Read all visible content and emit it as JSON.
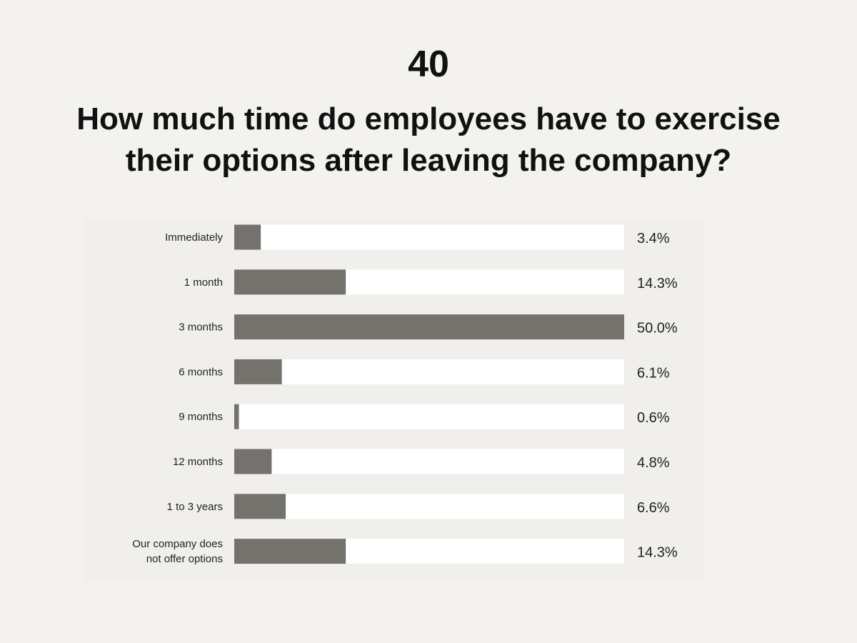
{
  "header": {
    "number": "40",
    "title_line1": "How much time do employees have to exercise",
    "title_line2": "their options after leaving the company?"
  },
  "colors": {
    "background": "#f3f2ee",
    "track": "#ffffff",
    "bar": "#74726d",
    "text": "#111111"
  },
  "chart_data": {
    "type": "bar",
    "orientation": "horizontal",
    "title": "How much time do employees have to exercise their options after leaving the company?",
    "categories": [
      [
        "Immediately"
      ],
      [
        "1 month"
      ],
      [
        "3 months"
      ],
      [
        "6 months"
      ],
      [
        "9 months"
      ],
      [
        "12 months"
      ],
      [
        "1 to 3 years"
      ],
      [
        "Our company does",
        "not offer options"
      ]
    ],
    "values": [
      3.4,
      14.3,
      50.0,
      6.1,
      0.6,
      4.8,
      6.6,
      14.3
    ],
    "value_labels": [
      "3.4%",
      "14.3%",
      "50.0%",
      "6.1%",
      "0.6%",
      "4.8%",
      "6.6%",
      "14.3%"
    ],
    "xlim": [
      0,
      50
    ],
    "grid": false,
    "legend": "none"
  }
}
